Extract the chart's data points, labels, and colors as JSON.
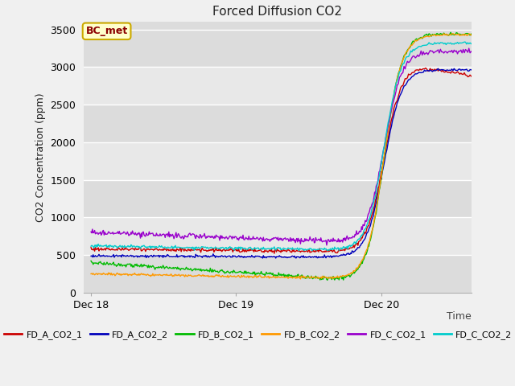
{
  "title": "Forced Diffusion CO2",
  "ylabel": "CO2 Concentration (ppm)",
  "xlabel": "Time",
  "annotation_label": "BC_met",
  "ylim": [
    0,
    3600
  ],
  "yticks": [
    0,
    500,
    1000,
    1500,
    2000,
    2500,
    3000,
    3500
  ],
  "xtick_positions": [
    0,
    1,
    2
  ],
  "xtick_labels": [
    "Dec 18",
    "Dec 19",
    "Dec 20"
  ],
  "xlim": [
    -0.05,
    2.62
  ],
  "fig_bg": "#f0f0f0",
  "plot_bg": "#dcdcdc",
  "band_colors": [
    "#dcdcdc",
    "#e8e8e8"
  ],
  "grid_color": "#ffffff",
  "series": [
    {
      "name": "FD_A_CO2_1",
      "color": "#cc0000"
    },
    {
      "name": "FD_A_CO2_2",
      "color": "#0000bb"
    },
    {
      "name": "FD_B_CO2_1",
      "color": "#00bb00"
    },
    {
      "name": "FD_B_CO2_2",
      "color": "#ff9900"
    },
    {
      "name": "FD_C_CO2_1",
      "color": "#9900cc"
    },
    {
      "name": "FD_C_CO2_2",
      "color": "#00cccc"
    }
  ]
}
